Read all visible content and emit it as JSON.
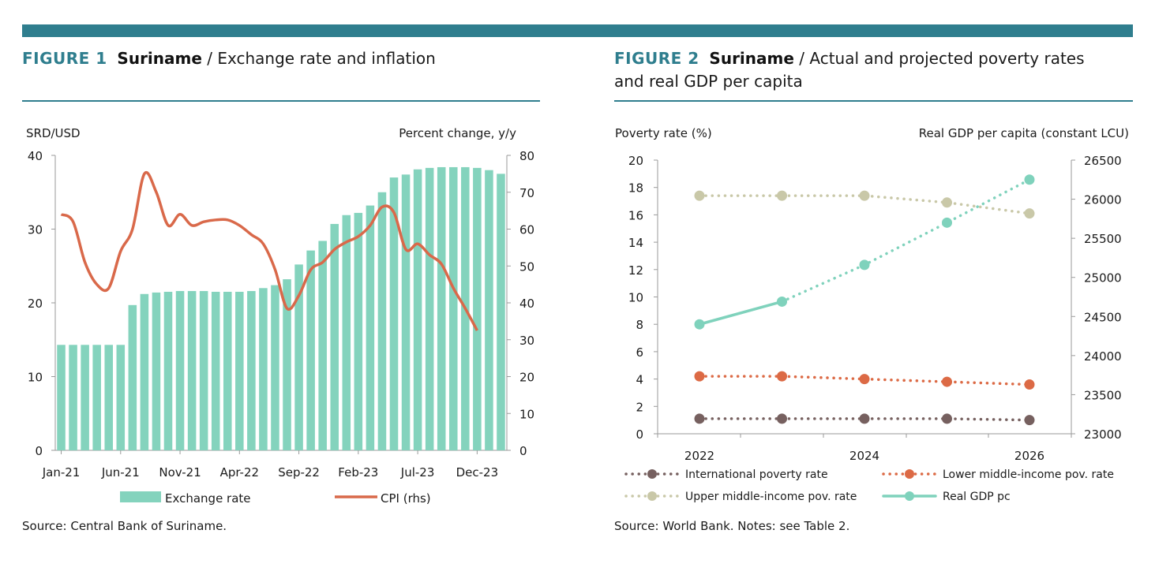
{
  "figure1": {
    "number": "FIGURE 1",
    "country": "Suriname",
    "title_rest": " / Exchange rate and inflation",
    "source": "Source: Central Bank of Suriname."
  },
  "figure2": {
    "number": "FIGURE 2",
    "country": "Suriname",
    "title_rest": " / Actual and projected poverty rates",
    "title_line2": "and real GDP per capita",
    "source": "Source: World Bank. Notes: see Table 2."
  },
  "colors": {
    "accent": "#2f7e8e",
    "bar": "#84d3bd",
    "cpi": "#d9694a",
    "intl": "#76605f",
    "lower": "#dc6a45",
    "upper": "#c9c8a8",
    "gdp": "#7fd2bc"
  },
  "chart_data": [
    {
      "type": "bar",
      "ylabel_left": "SRD/USD",
      "ylabel_right": "Percent change, y/y",
      "ylim_left": [
        0,
        40
      ],
      "ylim_right": [
        0,
        80
      ],
      "yticks_left": [
        "0",
        "10",
        "20",
        "30",
        "40"
      ],
      "yticks_right": [
        "0",
        "10",
        "20",
        "30",
        "40",
        "50",
        "60",
        "70",
        "80"
      ],
      "xtick_labels": [
        "Jan-21",
        "Jun-21",
        "Nov-21",
        "Apr-22",
        "Sep-22",
        "Feb-23",
        "Jul-23",
        "Dec-23"
      ],
      "xtick_index": [
        0,
        5,
        10,
        15,
        20,
        25,
        30,
        35
      ],
      "legend": [
        "Exchange rate",
        "CPI (rhs)"
      ],
      "legend_position": "bottom",
      "series": [
        {
          "name": "Exchange rate",
          "kind": "bar",
          "axis": "left",
          "values": [
            14.3,
            14.3,
            14.3,
            14.3,
            14.3,
            14.3,
            19.7,
            21.2,
            21.4,
            21.5,
            21.6,
            21.6,
            21.6,
            21.5,
            21.5,
            21.5,
            21.6,
            22.0,
            22.4,
            23.2,
            25.2,
            27.1,
            28.4,
            30.7,
            31.9,
            32.2,
            33.2,
            35.0,
            37.0,
            37.4,
            38.1,
            38.3,
            38.4,
            38.4,
            38.4,
            38.3,
            38.0,
            37.5
          ]
        },
        {
          "name": "CPI (rhs)",
          "kind": "line",
          "axis": "right",
          "values": [
            64,
            62,
            51,
            45,
            44,
            54,
            60,
            75,
            70,
            61,
            64,
            61,
            62,
            62.5,
            62.5,
            61,
            58.5,
            56,
            49,
            38.5,
            42,
            49,
            51,
            54.5,
            56.5,
            58,
            61,
            66,
            64.5,
            54.5,
            56,
            53,
            50.5,
            44,
            38.5,
            32.5
          ]
        }
      ]
    },
    {
      "type": "line",
      "ylabel_left": "Poverty rate (%)",
      "ylabel_right": "Real GDP per capita (constant LCU)",
      "ylim_left": [
        0,
        20
      ],
      "ylim_right": [
        23000,
        26500
      ],
      "yticks_left": [
        "0",
        "2",
        "4",
        "6",
        "8",
        "10",
        "12",
        "14",
        "16",
        "18",
        "20"
      ],
      "yticks_right": [
        "23000",
        "23500",
        "24000",
        "24500",
        "25000",
        "25500",
        "26000",
        "26500"
      ],
      "x": [
        2022,
        2023,
        2024,
        2025,
        2026
      ],
      "xtick_labels": [
        "2022",
        "2024",
        "2026"
      ],
      "legend_position": "bottom",
      "series": [
        {
          "name": "International poverty rate",
          "axis": "left",
          "style": "dotted",
          "values": [
            1.1,
            1.1,
            1.1,
            1.1,
            1.0
          ]
        },
        {
          "name": "Lower middle-income pov. rate",
          "axis": "left",
          "style": "dotted",
          "values": [
            4.2,
            4.2,
            4.0,
            3.8,
            3.6
          ]
        },
        {
          "name": "Upper middle-income pov. rate",
          "axis": "left",
          "style": "dotted",
          "values": [
            17.4,
            17.4,
            17.4,
            16.9,
            16.1
          ]
        },
        {
          "name": "Real GDP pc",
          "axis": "right",
          "style": "solid-then-dotted",
          "actual_until": 2023,
          "values": [
            24400,
            24690,
            25160,
            25700,
            26250
          ]
        }
      ]
    }
  ]
}
